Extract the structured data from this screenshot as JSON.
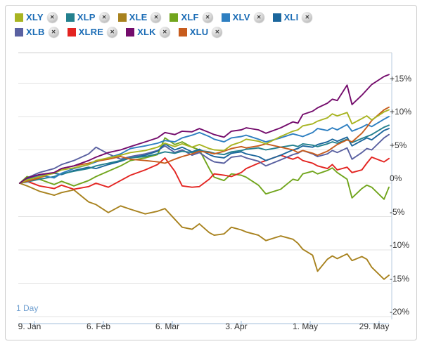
{
  "widget_title": "sector-performance-chart",
  "icons": {
    "close": "✕"
  },
  "colors": {
    "legend_text": "#1b6cb5",
    "axis_text": "#333333",
    "grid_line": "#e3e3e3",
    "plot_top_border": "#d0d0d0",
    "plot_right_border": "#b7cbdf",
    "axis_line": "#a3bfdb",
    "range_label": "#6f9fd0",
    "widget_border": "#cccccc",
    "background": "#ffffff"
  },
  "legend": {
    "rows": [
      [
        "XLY",
        "XLP",
        "XLE",
        "XLF",
        "XLV",
        "XLI"
      ],
      [
        "XLB",
        "XLRE",
        "XLK",
        "XLU"
      ]
    ]
  },
  "footer": {
    "range_label": "1 Day"
  },
  "chart_data": {
    "type": "line",
    "title": "",
    "xlabel": "",
    "ylabel": "",
    "grid": true,
    "legend_position": "top-left",
    "y_axis": {
      "tick_values": [
        15,
        10,
        5,
        0,
        -5,
        -10,
        -15,
        -20
      ],
      "tick_labels": [
        "+15%",
        "+10%",
        "+5%",
        "0%",
        "-5%",
        "-10%",
        "-15%",
        "-20%"
      ],
      "unit": "percent",
      "ylim": [
        -21,
        19.6
      ]
    },
    "x_axis": {
      "tick_labels": [
        "9. Jan",
        "6. Feb",
        "6. Mar",
        "3. Apr",
        "1. May",
        "29. May"
      ],
      "tick_days": [
        6,
        34,
        62,
        90,
        118,
        146
      ],
      "domain_days": [
        0,
        150
      ],
      "note": "days elapsed since first data point (3. Jan)"
    },
    "x_days": [
      0,
      3,
      8,
      14,
      17,
      22,
      28,
      31,
      36,
      41,
      45,
      51,
      56,
      59,
      63,
      66,
      70,
      73,
      77,
      79,
      83,
      86,
      90,
      92,
      97,
      100,
      106,
      111,
      113,
      115,
      119,
      121,
      125,
      127,
      129,
      133,
      135,
      139,
      141,
      143,
      148,
      150
    ],
    "series": [
      {
        "name": "XLE",
        "color": "#a8821e",
        "values": [
          0,
          -0.4,
          -1.2,
          -1.8,
          -1.4,
          -1.0,
          -2.8,
          -3.2,
          -4.4,
          -3.4,
          -3.9,
          -4.6,
          -4.2,
          -3.8,
          -5.4,
          -6.6,
          -6.9,
          -6.1,
          -7.4,
          -7.8,
          -7.6,
          -6.6,
          -7.0,
          -7.3,
          -7.8,
          -8.6,
          -7.9,
          -8.4,
          -9.0,
          -9.9,
          -10.8,
          -13.2,
          -11.4,
          -10.9,
          -11.3,
          -10.6,
          -11.6,
          -11.0,
          -11.4,
          -12.6,
          -14.4,
          -13.8
        ]
      },
      {
        "name": "XLF",
        "color": "#71a51d",
        "values": [
          0,
          1.0,
          0.6,
          -0.2,
          0.3,
          -0.4,
          0.4,
          1.0,
          1.8,
          2.6,
          3.4,
          3.8,
          4.3,
          6.8,
          5.8,
          6.2,
          5.4,
          5.0,
          2.2,
          0.9,
          0.4,
          1.4,
          1.2,
          0.9,
          -0.3,
          -1.6,
          -0.9,
          0.6,
          0.4,
          1.4,
          1.8,
          1.4,
          1.9,
          2.3,
          1.6,
          0.6,
          -2.2,
          -0.8,
          -0.3,
          -0.6,
          -2.4,
          -0.6
        ]
      },
      {
        "name": "XLRE",
        "color": "#e32421",
        "values": [
          0,
          0.3,
          -0.4,
          -0.8,
          -0.3,
          -0.9,
          -0.5,
          0.0,
          -0.6,
          0.4,
          1.2,
          2.0,
          2.8,
          3.8,
          1.8,
          -0.4,
          -0.6,
          -0.5,
          0.6,
          1.4,
          1.2,
          1.0,
          1.6,
          2.2,
          3.0,
          3.4,
          4.2,
          3.6,
          3.9,
          3.4,
          3.0,
          2.6,
          2.2,
          2.8,
          2.0,
          2.4,
          1.6,
          2.0,
          3.0,
          3.9,
          3.2,
          3.7
        ]
      },
      {
        "name": "XLB",
        "color": "#5a61a1",
        "values": [
          0,
          0.8,
          1.6,
          2.2,
          2.8,
          3.4,
          4.4,
          5.4,
          4.4,
          3.6,
          4.0,
          4.4,
          4.9,
          5.6,
          4.6,
          5.0,
          4.2,
          4.6,
          3.6,
          3.2,
          3.0,
          3.9,
          4.1,
          3.8,
          3.3,
          2.6,
          3.5,
          4.3,
          4.5,
          4.9,
          4.4,
          4.0,
          4.4,
          4.9,
          4.6,
          5.3,
          3.6,
          4.6,
          5.2,
          5.0,
          6.8,
          7.3
        ]
      },
      {
        "name": "XLI",
        "color": "#1b669c",
        "values": [
          0,
          0.6,
          1.1,
          1.5,
          1.3,
          1.9,
          2.4,
          2.2,
          2.8,
          3.3,
          3.8,
          4.2,
          4.8,
          5.9,
          5.0,
          5.4,
          4.7,
          5.1,
          4.3,
          4.0,
          3.8,
          4.5,
          4.7,
          4.4,
          4.0,
          3.4,
          4.2,
          5.0,
          5.2,
          5.6,
          5.4,
          5.8,
          6.2,
          6.6,
          6.3,
          6.9,
          5.6,
          6.4,
          6.8,
          6.5,
          7.9,
          8.2
        ]
      },
      {
        "name": "XLP",
        "color": "#23808e",
        "values": [
          0,
          0.2,
          0.6,
          1.0,
          1.4,
          1.8,
          2.2,
          2.6,
          3.0,
          3.4,
          3.8,
          4.0,
          4.4,
          4.7,
          4.5,
          4.8,
          4.6,
          4.9,
          4.7,
          4.5,
          4.3,
          4.7,
          4.9,
          5.1,
          5.3,
          5.0,
          5.4,
          5.7,
          5.5,
          5.9,
          5.7,
          5.5,
          5.9,
          6.2,
          6.0,
          6.6,
          6.1,
          6.7,
          7.0,
          7.3,
          8.4,
          8.7
        ]
      },
      {
        "name": "XLV",
        "color": "#2e7fc1",
        "values": [
          0,
          0.4,
          1.2,
          0.8,
          1.5,
          2.2,
          2.8,
          3.2,
          3.8,
          4.4,
          5.2,
          5.6,
          6.0,
          6.4,
          6.2,
          6.8,
          7.2,
          7.6,
          7.0,
          6.6,
          6.2,
          6.8,
          7.0,
          7.2,
          6.6,
          6.2,
          6.8,
          7.4,
          7.2,
          7.0,
          7.6,
          8.2,
          7.9,
          8.3,
          8.0,
          8.8,
          7.8,
          8.4,
          8.8,
          8.5,
          9.6,
          10.0
        ]
      },
      {
        "name": "XLU",
        "color": "#c75c1d",
        "values": [
          0,
          0.3,
          0.8,
          1.6,
          2.2,
          2.6,
          3.0,
          3.3,
          3.6,
          4.0,
          3.6,
          3.4,
          3.2,
          3.0,
          3.6,
          4.0,
          4.4,
          4.8,
          4.6,
          4.4,
          4.8,
          5.2,
          5.5,
          5.3,
          5.6,
          5.9,
          5.4,
          5.0,
          4.6,
          4.9,
          4.5,
          4.2,
          4.8,
          5.3,
          5.8,
          6.5,
          6.2,
          7.5,
          8.4,
          9.4,
          11.0,
          11.4
        ]
      },
      {
        "name": "XLY",
        "color": "#a8b421",
        "values": [
          0,
          0.5,
          1.0,
          1.5,
          2.0,
          2.3,
          2.8,
          3.4,
          3.8,
          4.2,
          4.6,
          4.9,
          5.4,
          6.0,
          5.5,
          5.9,
          5.4,
          5.8,
          5.2,
          5.0,
          4.9,
          5.7,
          6.2,
          6.6,
          6.3,
          5.9,
          7.0,
          7.8,
          8.0,
          8.6,
          8.9,
          9.3,
          9.8,
          10.4,
          10.1,
          10.6,
          8.9,
          9.7,
          10.1,
          9.5,
          10.7,
          11.0
        ]
      },
      {
        "name": "XLK",
        "color": "#740c6c",
        "values": [
          0,
          0.8,
          1.3,
          1.6,
          2.2,
          2.6,
          3.4,
          3.9,
          4.6,
          5.0,
          5.5,
          6.2,
          6.8,
          7.6,
          7.3,
          7.8,
          7.7,
          8.2,
          7.6,
          7.3,
          6.9,
          7.8,
          8.0,
          8.3,
          8.0,
          7.5,
          8.3,
          9.2,
          9.0,
          10.3,
          10.8,
          11.3,
          12.0,
          12.6,
          12.4,
          14.7,
          11.8,
          13.2,
          14.0,
          14.8,
          16.0,
          16.3
        ]
      }
    ],
    "legend_order": [
      "XLY",
      "XLP",
      "XLE",
      "XLF",
      "XLV",
      "XLI",
      "XLB",
      "XLRE",
      "XLK",
      "XLU"
    ]
  }
}
